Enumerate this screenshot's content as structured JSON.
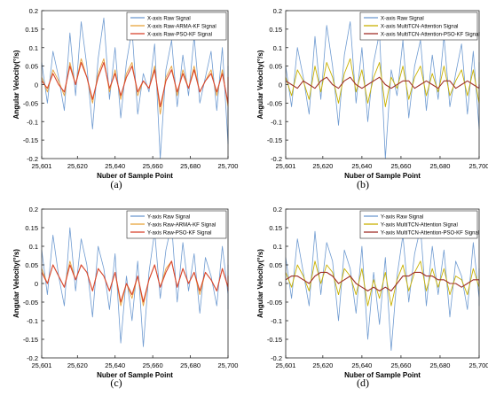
{
  "chart_data": [
    {
      "type": "line",
      "panel_label": "(a)",
      "title": "",
      "xlabel": "Nuber of Sample Point",
      "ylabel": "Angular Velocity(°/s)",
      "xlim": [
        25601,
        25700
      ],
      "ylim": [
        -0.2,
        0.2
      ],
      "xticks": [
        25601,
        25620,
        25640,
        25660,
        25680,
        25700
      ],
      "xtick_labels": [
        "25,601",
        "25,620",
        "25,640",
        "25,660",
        "25,680",
        "25,700"
      ],
      "yticks": [
        -0.2,
        -0.15,
        -0.1,
        -0.05,
        0,
        0.05,
        0.1,
        0.15,
        0.2
      ],
      "ytick_labels": [
        "-0.2",
        "-0.15",
        "-0.1",
        "-0.05",
        "0",
        "0.05",
        "0.1",
        "0.15",
        "0.2"
      ],
      "legend_position": "top-right",
      "x_step": 3,
      "series": [
        {
          "name": "X-axis Raw Signal",
          "color": "#6f9bd1",
          "values": [
            0.06,
            -0.05,
            0.09,
            0.02,
            -0.07,
            0.14,
            -0.03,
            0.17,
            0.05,
            -0.12,
            0.07,
            0.18,
            -0.04,
            0.1,
            -0.09,
            0.06,
            0.15,
            -0.08,
            0.03,
            -0.02,
            0.11,
            -0.2,
            0.04,
            0.12,
            -0.06,
            0.08,
            -0.03,
            0.13,
            -0.05,
            0.02,
            0.09,
            -0.07,
            0.1,
            -0.16,
            0.05,
            0.01
          ]
        },
        {
          "name": "X-axis Raw-ARMA-KF Signal",
          "color": "#e7a33c",
          "values": [
            0.02,
            -0.02,
            0.04,
            0.01,
            -0.03,
            0.06,
            0.0,
            0.07,
            0.02,
            -0.05,
            0.03,
            0.07,
            -0.02,
            0.04,
            -0.04,
            0.03,
            0.06,
            -0.03,
            0.01,
            -0.01,
            0.05,
            -0.08,
            0.02,
            0.05,
            -0.03,
            0.04,
            -0.01,
            0.05,
            -0.02,
            0.01,
            0.04,
            -0.03,
            0.04,
            -0.06,
            0.02,
            0.0
          ]
        },
        {
          "name": "X-axis Raw-PSO-KF Signal",
          "color": "#d8452f",
          "values": [
            0.01,
            -0.01,
            0.03,
            0.0,
            -0.02,
            0.05,
            0.0,
            0.06,
            0.02,
            -0.04,
            0.02,
            0.06,
            -0.01,
            0.03,
            -0.03,
            0.02,
            0.05,
            -0.02,
            0.01,
            -0.01,
            0.04,
            -0.06,
            0.01,
            0.04,
            -0.02,
            0.03,
            -0.01,
            0.04,
            -0.02,
            0.01,
            0.03,
            -0.02,
            0.03,
            -0.05,
            0.02,
            0.0
          ]
        }
      ]
    },
    {
      "type": "line",
      "panel_label": "(b)",
      "title": "",
      "xlabel": "Nuber of Sample Point",
      "ylabel": "Angular Velocity(°/s)",
      "xlim": [
        25601,
        25700
      ],
      "ylim": [
        -0.2,
        0.2
      ],
      "xticks": [
        25601,
        25620,
        25640,
        25660,
        25680,
        25700
      ],
      "xtick_labels": [
        "25,601",
        "25,620",
        "25,640",
        "25,660",
        "25,680",
        "25,700"
      ],
      "yticks": [
        -0.2,
        -0.15,
        -0.1,
        -0.05,
        0,
        0.05,
        0.1,
        0.15,
        0.2
      ],
      "ytick_labels": [
        "-0.2",
        "-0.15",
        "-0.1",
        "-0.05",
        "0",
        "0.05",
        "0.1",
        "0.15",
        "0.2"
      ],
      "legend_position": "top-right",
      "x_step": 3,
      "series": [
        {
          "name": "X-axis Raw Signal",
          "color": "#6f9bd1",
          "values": [
            0.05,
            -0.06,
            0.1,
            0.02,
            -0.08,
            0.13,
            -0.04,
            0.16,
            0.05,
            -0.11,
            0.08,
            0.17,
            -0.05,
            0.1,
            -0.1,
            0.06,
            0.14,
            -0.2,
            0.04,
            -0.03,
            0.12,
            -0.09,
            0.05,
            0.12,
            -0.07,
            0.08,
            -0.04,
            0.13,
            -0.06,
            0.03,
            0.11,
            -0.08,
            0.09,
            -0.12,
            0.06,
            0.02
          ]
        },
        {
          "name": "X-axis MultiTCN-Attention Signal",
          "color": "#c9b100",
          "values": [
            0.02,
            -0.03,
            0.04,
            0.01,
            -0.04,
            0.05,
            -0.02,
            0.06,
            0.02,
            -0.05,
            0.03,
            0.07,
            -0.02,
            0.04,
            -0.05,
            0.02,
            0.06,
            -0.06,
            0.02,
            -0.01,
            0.05,
            -0.04,
            0.02,
            0.05,
            -0.03,
            0.03,
            -0.02,
            0.05,
            -0.03,
            0.01,
            0.04,
            -0.03,
            0.04,
            -0.05,
            0.02,
            0.01
          ]
        },
        {
          "name": "X-axis MultiTCN-Attention-PSO-KF Signal",
          "color": "#a0302a",
          "values": [
            0.01,
            0.0,
            -0.01,
            0.01,
            0.0,
            -0.01,
            0.01,
            0.02,
            0.0,
            -0.01,
            0.01,
            0.02,
            0.0,
            -0.01,
            0.0,
            0.01,
            0.02,
            0.0,
            -0.01,
            0.0,
            0.01,
            0.01,
            -0.01,
            0.0,
            0.01,
            0.0,
            -0.01,
            0.01,
            0.01,
            -0.01,
            0.0,
            0.01,
            0.0,
            -0.01,
            0.0,
            -0.01
          ]
        }
      ]
    },
    {
      "type": "line",
      "panel_label": "(c)",
      "title": "",
      "xlabel": "Nuber of Sample Point",
      "ylabel": "Angular Velocity(°/s)",
      "xlim": [
        25601,
        25700
      ],
      "ylim": [
        -0.2,
        0.2
      ],
      "xticks": [
        25601,
        25620,
        25640,
        25660,
        25680,
        25700
      ],
      "xtick_labels": [
        "25,601",
        "25,620",
        "25,640",
        "25,660",
        "25,680",
        "25,700"
      ],
      "yticks": [
        -0.2,
        -0.15,
        -0.1,
        -0.05,
        0,
        0.05,
        0.1,
        0.15,
        0.2
      ],
      "ytick_labels": [
        "-0.2",
        "-0.15",
        "-0.1",
        "-0.05",
        "0",
        "0.05",
        "0.1",
        "0.15",
        "0.2"
      ],
      "legend_position": "top-right",
      "x_step": 3,
      "series": [
        {
          "name": "Y-axis Raw Signal",
          "color": "#6f9bd1",
          "values": [
            0.09,
            -0.03,
            0.13,
            0.02,
            -0.06,
            0.15,
            -0.02,
            0.12,
            0.05,
            -0.09,
            0.1,
            0.04,
            -0.07,
            0.08,
            -0.16,
            0.02,
            -0.1,
            0.06,
            -0.17,
            0.03,
            0.14,
            -0.04,
            0.09,
            0.16,
            -0.05,
            0.11,
            -0.02,
            0.08,
            -0.08,
            0.07,
            0.02,
            -0.06,
            0.1,
            -0.03,
            0.05,
            -0.07
          ]
        },
        {
          "name": "Y-axis Raw-ARMA-KF Signal",
          "color": "#e7a33c",
          "values": [
            0.04,
            0.0,
            0.05,
            0.02,
            -0.01,
            0.06,
            0.01,
            0.05,
            0.03,
            -0.02,
            0.04,
            0.02,
            -0.02,
            0.03,
            -0.06,
            0.0,
            -0.04,
            0.02,
            -0.06,
            0.01,
            0.05,
            -0.01,
            0.04,
            0.06,
            -0.01,
            0.04,
            0.0,
            0.03,
            -0.03,
            0.03,
            0.01,
            -0.02,
            0.04,
            -0.01,
            0.02,
            -0.02
          ]
        },
        {
          "name": "Y-axis Raw-PSO-KF Signal",
          "color": "#d8452f",
          "values": [
            0.03,
            0.0,
            0.05,
            0.02,
            -0.01,
            0.05,
            0.01,
            0.05,
            0.03,
            -0.02,
            0.04,
            0.02,
            -0.02,
            0.03,
            -0.05,
            0.0,
            -0.03,
            0.02,
            -0.05,
            0.01,
            0.05,
            -0.01,
            0.03,
            0.06,
            -0.01,
            0.04,
            0.0,
            0.03,
            -0.02,
            0.03,
            0.01,
            -0.02,
            0.04,
            -0.01,
            0.02,
            -0.02
          ]
        }
      ]
    },
    {
      "type": "line",
      "panel_label": "(d)",
      "title": "",
      "xlabel": "Nuber of Sample Point",
      "ylabel": "Angular Velocity(°/s)",
      "xlim": [
        25601,
        25700
      ],
      "ylim": [
        -0.2,
        0.2
      ],
      "xticks": [
        25601,
        25620,
        25640,
        25660,
        25680,
        25700
      ],
      "xtick_labels": [
        "25,601",
        "25,620",
        "25,640",
        "25,660",
        "25,680",
        "25,700"
      ],
      "yticks": [
        -0.2,
        -0.15,
        -0.1,
        -0.05,
        0,
        0.05,
        0.1,
        0.15,
        0.2
      ],
      "ytick_labels": [
        "-0.2",
        "-0.15",
        "-0.1",
        "-0.05",
        "0",
        "0.05",
        "0.1",
        "0.15",
        "0.2"
      ],
      "legend_position": "top-right",
      "x_step": 3,
      "series": [
        {
          "name": "Y-axis Raw Signal",
          "color": "#6f9bd1",
          "values": [
            0.07,
            -0.04,
            0.12,
            0.03,
            -0.06,
            0.14,
            -0.03,
            0.11,
            0.06,
            -0.1,
            0.09,
            0.04,
            -0.08,
            0.1,
            -0.15,
            0.03,
            -0.11,
            0.07,
            -0.18,
            0.02,
            0.13,
            -0.05,
            0.08,
            0.15,
            -0.06,
            0.1,
            -0.03,
            0.09,
            -0.09,
            0.06,
            0.02,
            -0.07,
            0.11,
            -0.04,
            0.04,
            -0.06
          ]
        },
        {
          "name": "Y-axis MultiTCN-Attention Signal",
          "color": "#c9b100",
          "values": [
            0.03,
            -0.01,
            0.05,
            0.02,
            -0.02,
            0.06,
            0.0,
            0.05,
            0.03,
            -0.03,
            0.04,
            0.02,
            -0.03,
            0.04,
            -0.06,
            0.01,
            -0.04,
            0.03,
            -0.06,
            0.01,
            0.05,
            -0.02,
            0.03,
            0.06,
            -0.02,
            0.04,
            -0.01,
            0.04,
            -0.03,
            0.02,
            0.01,
            -0.03,
            0.04,
            -0.01,
            0.02,
            -0.02
          ]
        },
        {
          "name": "Y-axis MultiTCN-Attention-PSO-KF Signal",
          "color": "#a0302a",
          "values": [
            0.01,
            0.02,
            0.02,
            0.01,
            0.0,
            0.02,
            0.03,
            0.03,
            0.02,
            0.0,
            0.01,
            0.02,
            0.0,
            -0.01,
            -0.02,
            -0.01,
            -0.02,
            -0.01,
            -0.02,
            0.0,
            0.02,
            0.02,
            0.03,
            0.03,
            0.02,
            0.02,
            0.01,
            0.01,
            0.0,
            0.0,
            -0.01,
            0.0,
            0.01,
            0.01,
            0.0,
            0.0
          ]
        }
      ]
    }
  ]
}
